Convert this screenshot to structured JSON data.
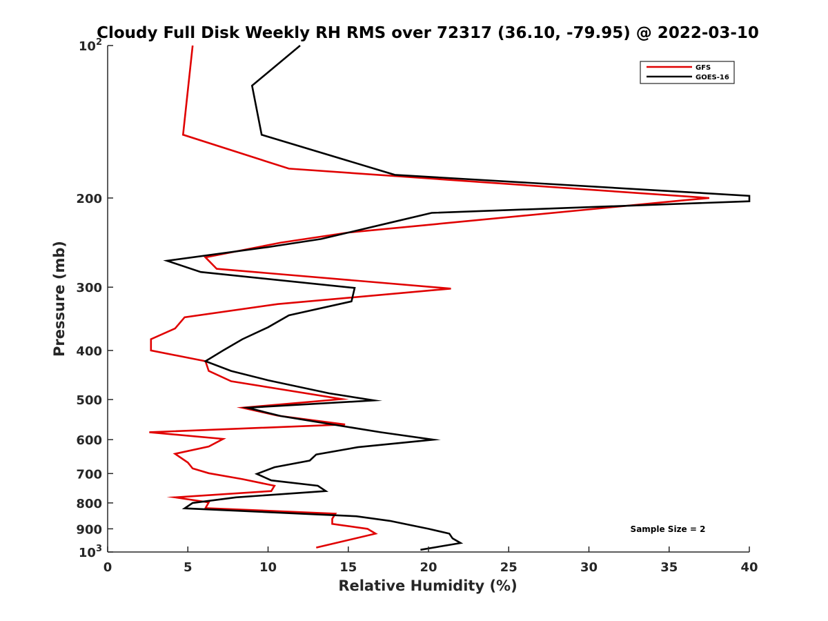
{
  "chart_data": {
    "type": "line",
    "title": "Cloudy Full Disk Weekly RH RMS over 72317 (36.10, -79.95) @ 2022-03-10",
    "xlabel": "Relative Humidity (%)",
    "ylabel": "Pressure (mb)",
    "xlim": [
      0,
      40
    ],
    "ylim": [
      100,
      1000
    ],
    "yscale": "log",
    "y_reversed": true,
    "grid": false,
    "legend": "top-right",
    "x_ticks": [
      0,
      5,
      10,
      15,
      20,
      25,
      30,
      35,
      40
    ],
    "y_ticks": [
      {
        "value": 100,
        "base": "10",
        "exp": "2"
      },
      {
        "value": 200,
        "label": "200"
      },
      {
        "value": 300,
        "label": "300"
      },
      {
        "value": 400,
        "label": "400"
      },
      {
        "value": 500,
        "label": "500"
      },
      {
        "value": 600,
        "label": "600"
      },
      {
        "value": 700,
        "label": "700"
      },
      {
        "value": 800,
        "label": "800"
      },
      {
        "value": 900,
        "label": "900"
      },
      {
        "value": 1000,
        "base": "10",
        "exp": "3"
      }
    ],
    "annotation": "Sample Size = 2",
    "series": [
      {
        "name": "GFS",
        "color": "#e00000",
        "points": [
          [
            5.3,
            100
          ],
          [
            4.7,
            150
          ],
          [
            11.3,
            175
          ],
          [
            37.5,
            200
          ],
          [
            36.0,
            202
          ],
          [
            15.0,
            234
          ],
          [
            10.8,
            245
          ],
          [
            6.1,
            262
          ],
          [
            6.8,
            276
          ],
          [
            21.4,
            302
          ],
          [
            10.6,
            324
          ],
          [
            4.8,
            344
          ],
          [
            4.2,
            362
          ],
          [
            2.7,
            380
          ],
          [
            2.7,
            400
          ],
          [
            6.1,
            420
          ],
          [
            6.3,
            439
          ],
          [
            7.7,
            460
          ],
          [
            14.6,
            499
          ],
          [
            8.4,
            519
          ],
          [
            10.6,
            538
          ],
          [
            14.8,
            560
          ],
          [
            2.6,
            580
          ],
          [
            7.2,
            598
          ],
          [
            6.3,
            619
          ],
          [
            4.2,
            640
          ],
          [
            5.0,
            666
          ],
          [
            5.3,
            684
          ],
          [
            6.3,
            699
          ],
          [
            8.4,
            718
          ],
          [
            10.4,
            740
          ],
          [
            10.2,
            758
          ],
          [
            4.2,
            780
          ],
          [
            6.3,
            798
          ],
          [
            6.1,
            819
          ],
          [
            14.2,
            840
          ],
          [
            14.0,
            860
          ],
          [
            14.0,
            880
          ],
          [
            16.2,
            900
          ],
          [
            16.7,
            920
          ],
          [
            13.0,
            980
          ]
        ]
      },
      {
        "name": "GOES-16",
        "color": "#000000",
        "points": [
          [
            12.0,
            100
          ],
          [
            9.0,
            120
          ],
          [
            9.6,
            150
          ],
          [
            17.9,
            180
          ],
          [
            40.0,
            198
          ],
          [
            40.0,
            203
          ],
          [
            20.2,
            214
          ],
          [
            17.8,
            223
          ],
          [
            13.3,
            241
          ],
          [
            10.0,
            250
          ],
          [
            3.7,
            266
          ],
          [
            5.8,
            280
          ],
          [
            15.4,
            301
          ],
          [
            15.2,
            320
          ],
          [
            11.3,
            341
          ],
          [
            10.0,
            360
          ],
          [
            8.4,
            380
          ],
          [
            7.2,
            400
          ],
          [
            6.1,
            420
          ],
          [
            7.7,
            439
          ],
          [
            10.0,
            458
          ],
          [
            13.8,
            486
          ],
          [
            16.6,
            502
          ],
          [
            8.7,
            519
          ],
          [
            10.8,
            539
          ],
          [
            17.0,
            580
          ],
          [
            20.3,
            600
          ],
          [
            15.6,
            621
          ],
          [
            13.0,
            642
          ],
          [
            12.6,
            660
          ],
          [
            10.4,
            680
          ],
          [
            9.3,
            701
          ],
          [
            10.2,
            722
          ],
          [
            13.1,
            740
          ],
          [
            13.6,
            758
          ],
          [
            8.0,
            780
          ],
          [
            5.3,
            800
          ],
          [
            4.8,
            820
          ],
          [
            15.5,
            850
          ],
          [
            17.6,
            868
          ],
          [
            20.0,
            900
          ],
          [
            21.3,
            920
          ],
          [
            21.5,
            940
          ],
          [
            22.0,
            960
          ],
          [
            19.5,
            990
          ]
        ]
      }
    ]
  }
}
